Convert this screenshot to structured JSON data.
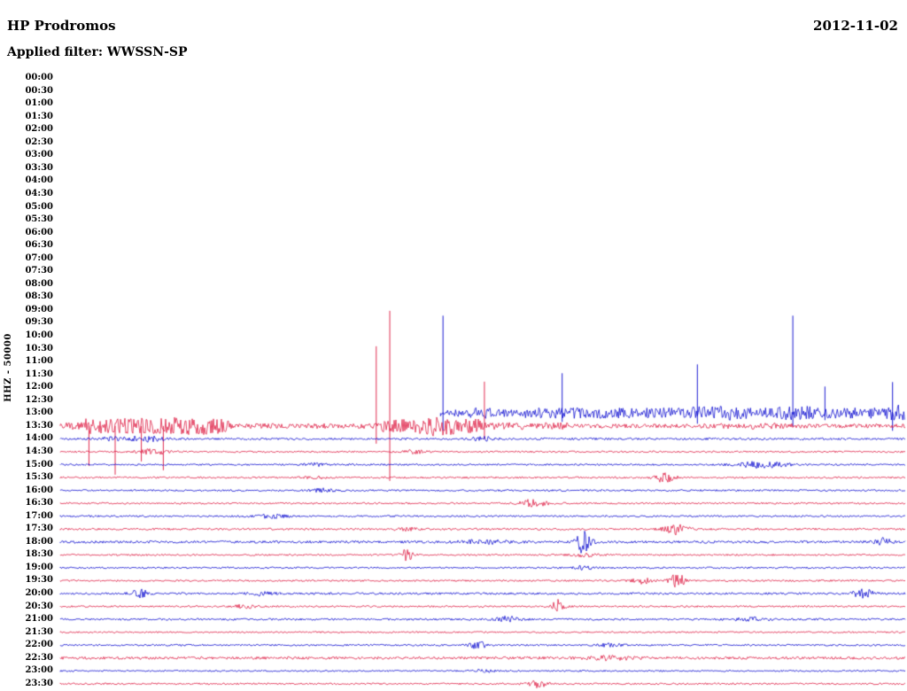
{
  "header": {
    "station": "HP Prodromos",
    "date": "2012-11-02",
    "filter_line": "Applied filter: WWSSN-SP"
  },
  "axis": {
    "label": "HHZ - 50000"
  },
  "chart_data": {
    "type": "line",
    "subtype": "helicorder",
    "title": "HP Prodromos",
    "date": "2012-11-02",
    "filter": "WWSSN-SP",
    "channel_scale": "HHZ - 50000",
    "minutes_per_row": 30,
    "colors": {
      "red": "#dc143c",
      "blue": "#0000cd"
    },
    "rows": [
      {
        "label": "00:00",
        "color": "blue",
        "has_data": false
      },
      {
        "label": "00:30",
        "color": "red",
        "has_data": false
      },
      {
        "label": "01:00",
        "color": "blue",
        "has_data": false
      },
      {
        "label": "01:30",
        "color": "red",
        "has_data": false
      },
      {
        "label": "02:00",
        "color": "blue",
        "has_data": false
      },
      {
        "label": "02:30",
        "color": "red",
        "has_data": false
      },
      {
        "label": "03:00",
        "color": "blue",
        "has_data": false
      },
      {
        "label": "03:30",
        "color": "red",
        "has_data": false
      },
      {
        "label": "04:00",
        "color": "blue",
        "has_data": false
      },
      {
        "label": "04:30",
        "color": "red",
        "has_data": false
      },
      {
        "label": "05:00",
        "color": "blue",
        "has_data": false
      },
      {
        "label": "05:30",
        "color": "red",
        "has_data": false
      },
      {
        "label": "06:00",
        "color": "blue",
        "has_data": false
      },
      {
        "label": "06:30",
        "color": "red",
        "has_data": false
      },
      {
        "label": "07:00",
        "color": "blue",
        "has_data": false
      },
      {
        "label": "07:30",
        "color": "red",
        "has_data": false
      },
      {
        "label": "08:00",
        "color": "blue",
        "has_data": false
      },
      {
        "label": "08:30",
        "color": "red",
        "has_data": false
      },
      {
        "label": "09:00",
        "color": "blue",
        "has_data": false
      },
      {
        "label": "09:30",
        "color": "red",
        "has_data": false
      },
      {
        "label": "10:00",
        "color": "blue",
        "has_data": false
      },
      {
        "label": "10:30",
        "color": "red",
        "has_data": false
      },
      {
        "label": "11:00",
        "color": "blue",
        "has_data": false
      },
      {
        "label": "11:30",
        "color": "red",
        "has_data": false
      },
      {
        "label": "12:00",
        "color": "blue",
        "has_data": false
      },
      {
        "label": "12:30",
        "color": "red",
        "has_data": false
      },
      {
        "label": "13:00",
        "color": "blue",
        "has_data": true,
        "data_start": 0.45,
        "segments": [
          [
            0.45,
            0.55,
            4
          ],
          [
            0.55,
            0.7,
            6
          ],
          [
            0.7,
            1.0,
            6
          ]
        ],
        "events": [
          {
            "t": 0.5,
            "a": 3,
            "w": 0.01
          },
          {
            "t": 0.78,
            "a": 3,
            "w": 0.02
          },
          {
            "t": 0.87,
            "a": 3,
            "w": 0.015
          },
          {
            "t": 0.99,
            "a": 4,
            "w": 0.008
          }
        ],
        "spikes": [
          {
            "t": 0.453,
            "up": 110,
            "down": 20
          },
          {
            "t": 0.594,
            "up": 45,
            "down": 10
          },
          {
            "t": 0.754,
            "up": 55,
            "down": 12
          },
          {
            "t": 0.867,
            "up": 110,
            "down": 15
          },
          {
            "t": 0.905,
            "up": 30,
            "down": 8
          },
          {
            "t": 0.985,
            "up": 35,
            "down": 20
          }
        ]
      },
      {
        "label": "13:30",
        "color": "red",
        "has_data": true,
        "segments": [
          [
            0.0,
            0.03,
            4
          ],
          [
            0.03,
            0.1,
            9
          ],
          [
            0.1,
            0.2,
            8
          ],
          [
            0.2,
            0.38,
            3
          ],
          [
            0.38,
            0.5,
            8
          ],
          [
            0.5,
            0.6,
            4
          ],
          [
            0.6,
            1.0,
            2.3
          ]
        ],
        "events": [
          {
            "t": 0.15,
            "a": 3,
            "w": 0.02
          },
          {
            "t": 0.45,
            "a": 4,
            "w": 0.015
          },
          {
            "t": 0.82,
            "a": 1.5,
            "w": 0.03
          }
        ],
        "spikes": [
          {
            "t": 0.034,
            "up": 0,
            "down": 45
          },
          {
            "t": 0.065,
            "up": 0,
            "down": 55
          },
          {
            "t": 0.096,
            "up": 0,
            "down": 40
          },
          {
            "t": 0.122,
            "up": 0,
            "down": 50
          },
          {
            "t": 0.374,
            "up": 90,
            "down": 20
          },
          {
            "t": 0.39,
            "up": 130,
            "down": 62
          },
          {
            "t": 0.502,
            "up": 50,
            "down": 15
          }
        ]
      },
      {
        "label": "14:00",
        "color": "blue",
        "has_data": true,
        "noise": 1.2,
        "events": [
          {
            "t": 0.06,
            "a": 2,
            "w": 0.008
          },
          {
            "t": 0.1,
            "a": 3,
            "w": 0.015
          },
          {
            "t": 0.5,
            "a": 2,
            "w": 0.01
          }
        ]
      },
      {
        "label": "14:30",
        "color": "red",
        "has_data": true,
        "noise": 1.0,
        "events": [
          {
            "t": 0.11,
            "a": 3,
            "w": 0.012
          },
          {
            "t": 0.42,
            "a": 2,
            "w": 0.008
          }
        ]
      },
      {
        "label": "15:00",
        "color": "blue",
        "has_data": true,
        "noise": 1.0,
        "events": [
          {
            "t": 0.3,
            "a": 1.5,
            "w": 0.01
          },
          {
            "t": 0.83,
            "a": 4,
            "w": 0.02
          }
        ]
      },
      {
        "label": "15:30",
        "color": "red",
        "has_data": true,
        "noise": 1.0,
        "events": [
          {
            "t": 0.3,
            "a": 1.5,
            "w": 0.01
          },
          {
            "t": 0.715,
            "a": 6,
            "w": 0.008
          }
        ]
      },
      {
        "label": "16:00",
        "color": "blue",
        "has_data": true,
        "noise": 1.0,
        "events": [
          {
            "t": 0.31,
            "a": 2,
            "w": 0.01
          }
        ]
      },
      {
        "label": "16:30",
        "color": "red",
        "has_data": true,
        "noise": 1.0,
        "events": [
          {
            "t": 0.56,
            "a": 5,
            "w": 0.01
          }
        ]
      },
      {
        "label": "17:00",
        "color": "blue",
        "has_data": true,
        "noise": 1.0,
        "events": [
          {
            "t": 0.25,
            "a": 2,
            "w": 0.012
          }
        ]
      },
      {
        "label": "17:30",
        "color": "red",
        "has_data": true,
        "noise": 1.1,
        "events": [
          {
            "t": 0.41,
            "a": 2,
            "w": 0.008
          },
          {
            "t": 0.73,
            "a": 6,
            "w": 0.01
          }
        ]
      },
      {
        "label": "18:00",
        "color": "blue",
        "has_data": true,
        "noise": 1.4,
        "events": [
          {
            "t": 0.5,
            "a": 2,
            "w": 0.02
          },
          {
            "t": 0.62,
            "a": 14,
            "w": 0.006
          },
          {
            "t": 0.975,
            "a": 5,
            "w": 0.006
          }
        ]
      },
      {
        "label": "18:30",
        "color": "red",
        "has_data": true,
        "noise": 1.0,
        "events": [
          {
            "t": 0.41,
            "a": 7,
            "w": 0.005
          },
          {
            "t": 0.62,
            "a": 2,
            "w": 0.01
          }
        ]
      },
      {
        "label": "19:00",
        "color": "blue",
        "has_data": true,
        "noise": 1.0,
        "events": [
          {
            "t": 0.62,
            "a": 2,
            "w": 0.008
          }
        ]
      },
      {
        "label": "19:30",
        "color": "red",
        "has_data": true,
        "noise": 1.0,
        "events": [
          {
            "t": 0.69,
            "a": 4,
            "w": 0.008
          },
          {
            "t": 0.73,
            "a": 9,
            "w": 0.006
          }
        ]
      },
      {
        "label": "20:00",
        "color": "blue",
        "has_data": true,
        "noise": 1.2,
        "events": [
          {
            "t": 0.095,
            "a": 4,
            "w": 0.008
          },
          {
            "t": 0.24,
            "a": 2,
            "w": 0.01
          },
          {
            "t": 0.95,
            "a": 5,
            "w": 0.008
          }
        ]
      },
      {
        "label": "20:30",
        "color": "red",
        "has_data": true,
        "noise": 1.0,
        "events": [
          {
            "t": 0.22,
            "a": 2,
            "w": 0.01
          },
          {
            "t": 0.59,
            "a": 8,
            "w": 0.005
          }
        ]
      },
      {
        "label": "21:00",
        "color": "blue",
        "has_data": true,
        "noise": 1.1,
        "events": [
          {
            "t": 0.53,
            "a": 3,
            "w": 0.01
          },
          {
            "t": 0.82,
            "a": 2,
            "w": 0.015
          }
        ]
      },
      {
        "label": "21:30",
        "color": "red",
        "has_data": true,
        "noise": 0.9,
        "events": []
      },
      {
        "label": "22:00",
        "color": "blue",
        "has_data": true,
        "noise": 1.0,
        "events": [
          {
            "t": 0.495,
            "a": 4,
            "w": 0.008
          },
          {
            "t": 0.65,
            "a": 2,
            "w": 0.01
          }
        ]
      },
      {
        "label": "22:30",
        "color": "red",
        "has_data": true,
        "noise": 1.5,
        "events": [
          {
            "t": 0.65,
            "a": 2,
            "w": 0.02
          }
        ]
      },
      {
        "label": "23:00",
        "color": "blue",
        "has_data": true,
        "noise": 0.9,
        "events": [
          {
            "t": 0.5,
            "a": 1.5,
            "w": 0.01
          }
        ]
      },
      {
        "label": "23:30",
        "color": "red",
        "has_data": true,
        "noise": 1.0,
        "events": [
          {
            "t": 0.565,
            "a": 4,
            "w": 0.008
          }
        ]
      }
    ]
  }
}
